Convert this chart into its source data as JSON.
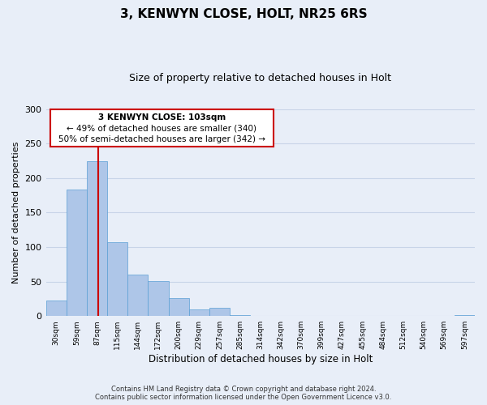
{
  "title": "3, KENWYN CLOSE, HOLT, NR25 6RS",
  "subtitle": "Size of property relative to detached houses in Holt",
  "xlabel": "Distribution of detached houses by size in Holt",
  "ylabel": "Number of detached properties",
  "bin_labels": [
    "30sqm",
    "59sqm",
    "87sqm",
    "115sqm",
    "144sqm",
    "172sqm",
    "200sqm",
    "229sqm",
    "257sqm",
    "285sqm",
    "314sqm",
    "342sqm",
    "370sqm",
    "399sqm",
    "427sqm",
    "455sqm",
    "484sqm",
    "512sqm",
    "540sqm",
    "569sqm",
    "597sqm"
  ],
  "bar_values": [
    22,
    184,
    225,
    107,
    60,
    51,
    26,
    10,
    12,
    1,
    0,
    0,
    0,
    0,
    0,
    0,
    0,
    0,
    0,
    0,
    2
  ],
  "bar_color": "#aec6e8",
  "bar_edge_color": "#5a9fd4",
  "bg_color": "#e8eef8",
  "grid_color": "#c8d4e8",
  "vline_color": "#cc0000",
  "annotation_line1": "3 KENWYN CLOSE: 103sqm",
  "annotation_line2": "← 49% of detached houses are smaller (340)",
  "annotation_line3": "50% of semi-detached houses are larger (342) →",
  "annotation_box_color": "#cc0000",
  "ylim": [
    0,
    300
  ],
  "yticks": [
    0,
    50,
    100,
    150,
    200,
    250,
    300
  ],
  "footer_line1": "Contains HM Land Registry data © Crown copyright and database right 2024.",
  "footer_line2": "Contains public sector information licensed under the Open Government Licence v3.0."
}
